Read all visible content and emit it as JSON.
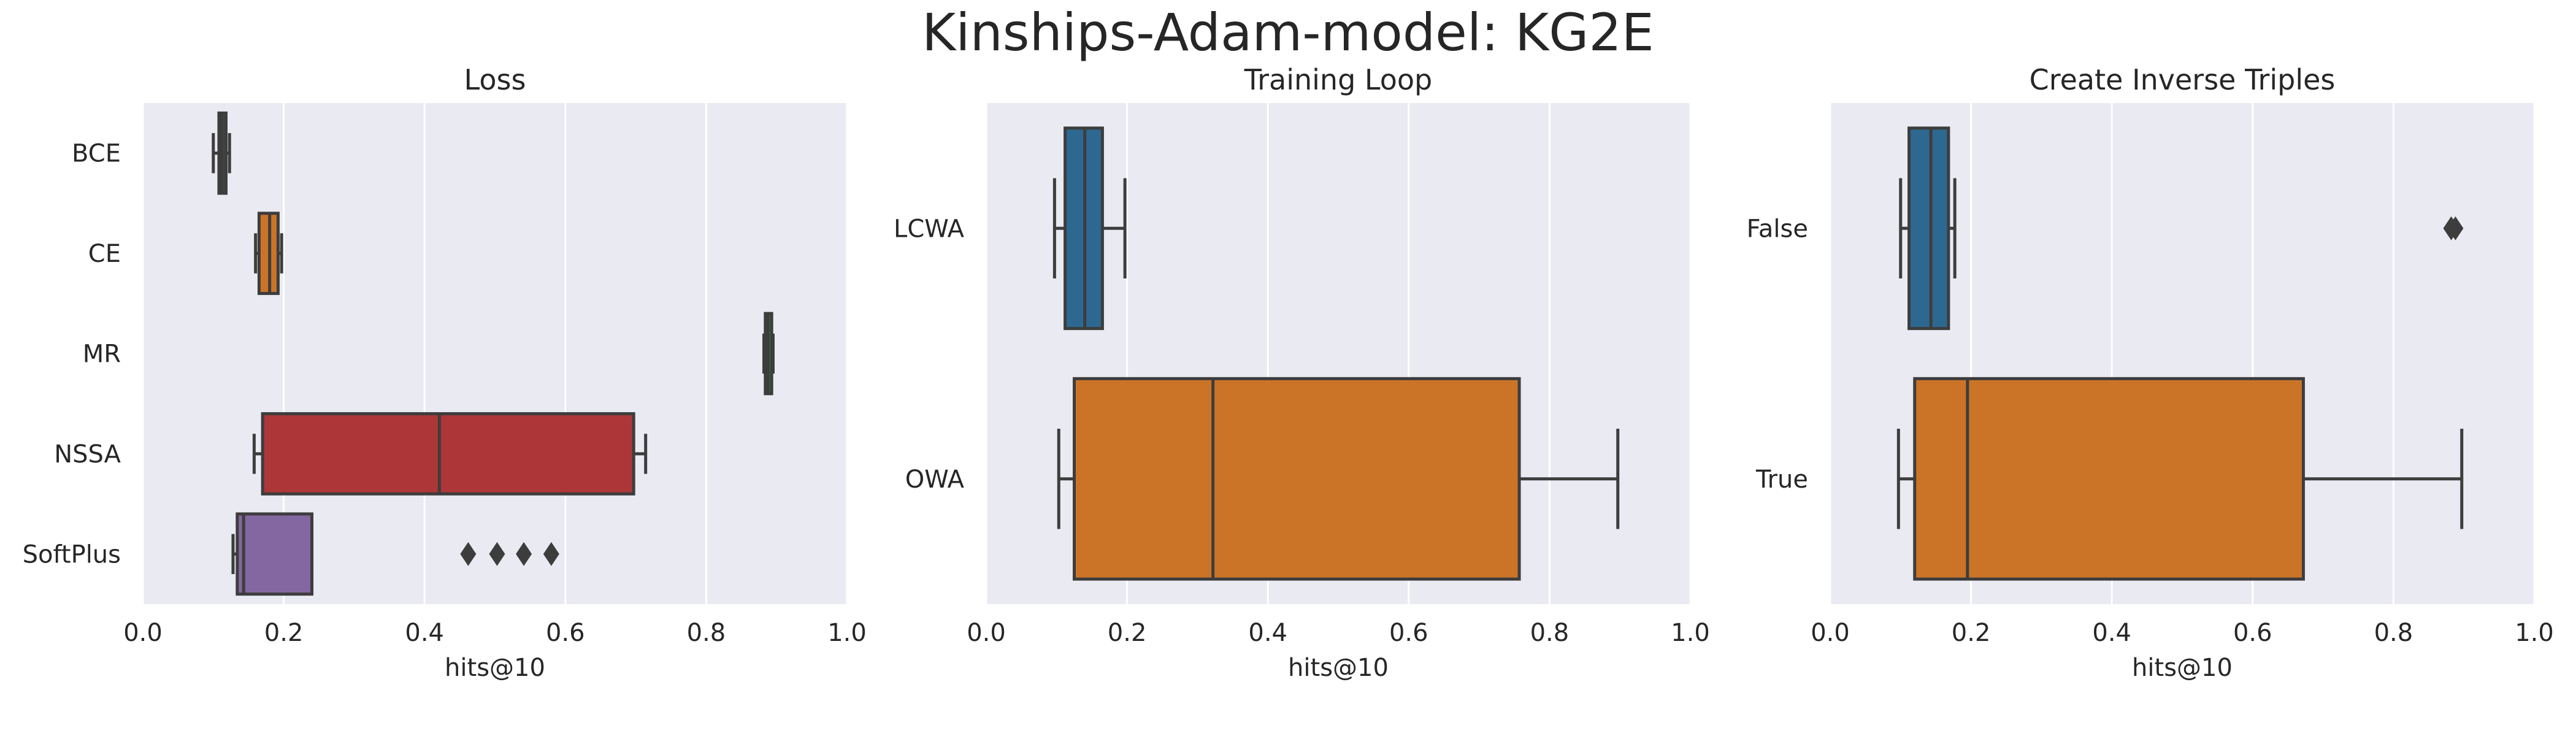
{
  "figure": {
    "title": "Kinships-Adam-model: KG2E",
    "colors": {
      "axes_bg": "#eaeaf2",
      "grid": "#ffffff",
      "edge": "#3d3d3d",
      "text": "#262626"
    }
  },
  "chart_data": [
    {
      "type": "box",
      "orientation": "horizontal",
      "title": "Loss",
      "xlabel": "hits@10",
      "ylabel": "",
      "xlim": [
        0,
        1
      ],
      "xticks": [
        "0.0",
        "0.2",
        "0.4",
        "0.6",
        "0.8",
        "1.0"
      ],
      "grid": true,
      "categories": [
        "BCE",
        "CE",
        "MR",
        "NSSA",
        "SoftPlus"
      ],
      "boxes": [
        {
          "category": "BCE",
          "color": "#4c4c4c",
          "whislo": 0.1,
          "q1": 0.108,
          "median": 0.112,
          "q3": 0.118,
          "whishi": 0.123,
          "fliers": []
        },
        {
          "category": "CE",
          "color": "#e1812c",
          "whislo": 0.16,
          "q1": 0.165,
          "median": 0.18,
          "q3": 0.192,
          "whishi": 0.197,
          "fliers": []
        },
        {
          "category": "MR",
          "color": "#3a923a",
          "whislo": 0.882,
          "q1": 0.884,
          "median": 0.888,
          "q3": 0.893,
          "whishi": 0.895,
          "fliers": []
        },
        {
          "category": "NSSA",
          "color": "#c03d3e",
          "whislo": 0.158,
          "q1": 0.17,
          "median": 0.421,
          "q3": 0.697,
          "whishi": 0.714,
          "fliers": []
        },
        {
          "category": "SoftPlus",
          "color": "#9372b2",
          "whislo": 0.128,
          "q1": 0.134,
          "median": 0.143,
          "q3": 0.24,
          "whishi": 0.24,
          "fliers": [
            0.462,
            0.503,
            0.541,
            0.58
          ]
        }
      ]
    },
    {
      "type": "box",
      "orientation": "horizontal",
      "title": "Training Loop",
      "xlabel": "hits@10",
      "ylabel": "",
      "xlim": [
        0,
        1
      ],
      "xticks": [
        "0.0",
        "0.2",
        "0.4",
        "0.6",
        "0.8",
        "1.0"
      ],
      "grid": true,
      "categories": [
        "LCWA",
        "OWA"
      ],
      "boxes": [
        {
          "category": "LCWA",
          "color": "#3274a1",
          "whislo": 0.097,
          "q1": 0.112,
          "median": 0.14,
          "q3": 0.165,
          "whishi": 0.197,
          "fliers": []
        },
        {
          "category": "OWA",
          "color": "#e1812c",
          "whislo": 0.103,
          "q1": 0.125,
          "median": 0.322,
          "q3": 0.757,
          "whishi": 0.897,
          "fliers": []
        }
      ]
    },
    {
      "type": "box",
      "orientation": "horizontal",
      "title": "Create Inverse Triples",
      "xlabel": "hits@10",
      "ylabel": "",
      "xlim": [
        0,
        1
      ],
      "xticks": [
        "0.0",
        "0.2",
        "0.4",
        "0.6",
        "0.8",
        "1.0"
      ],
      "grid": true,
      "categories": [
        "False",
        "True"
      ],
      "boxes": [
        {
          "category": "False",
          "color": "#3274a1",
          "whislo": 0.1,
          "q1": 0.112,
          "median": 0.143,
          "q3": 0.168,
          "whishi": 0.177,
          "fliers": [
            0.882,
            0.888
          ]
        },
        {
          "category": "True",
          "color": "#e1812c",
          "whislo": 0.097,
          "q1": 0.12,
          "median": 0.195,
          "q3": 0.672,
          "whishi": 0.897,
          "fliers": []
        }
      ]
    }
  ]
}
